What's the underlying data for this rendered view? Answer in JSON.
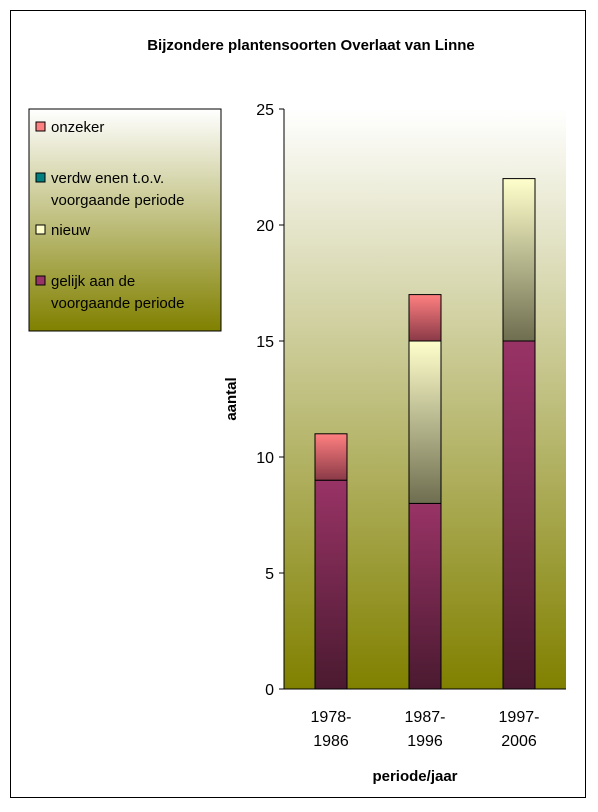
{
  "chart_data": {
    "type": "bar",
    "stacked": true,
    "title": "Bijzondere plantensoorten Overlaat van Linne",
    "xlabel": "periode/jaar",
    "ylabel": "aantal",
    "categories": [
      [
        "1978-",
        "1986"
      ],
      [
        "1987-",
        "1996"
      ],
      [
        "1997-",
        "2006"
      ]
    ],
    "ylim": [
      0,
      25
    ],
    "yticks": [
      "0",
      "5",
      "10",
      "15",
      "20",
      "25"
    ],
    "series": [
      {
        "name": "gelijk aan de voorgaande periode",
        "values": [
          9,
          8,
          15
        ],
        "color": "#993366",
        "color_dark": "#4a1a30"
      },
      {
        "name": "nieuw",
        "values": [
          0,
          7,
          7
        ],
        "color": "#ffffcc",
        "color_dark": "#6e6e50"
      },
      {
        "name": "verdw enen t.o.v. voorgaande periode",
        "values": [
          0,
          0,
          0
        ],
        "color": "#008080",
        "color_dark": "#004040"
      },
      {
        "name": "onzeker",
        "values": [
          2,
          2,
          0
        ],
        "color": "#ff8080",
        "color_dark": "#8a3a48"
      }
    ],
    "legend": {
      "placement": "left",
      "items": [
        {
          "lines": [
            "onzeker"
          ],
          "color": "#ff8080"
        },
        {
          "lines": [
            "verdw enen t.o.v.",
            "voorgaande periode"
          ],
          "color": "#008080"
        },
        {
          "lines": [
            "nieuw"
          ],
          "color": "#ffffcc"
        },
        {
          "lines": [
            "gelijk aan de",
            "voorgaande periode"
          ],
          "color": "#993366"
        }
      ]
    },
    "plot_background": {
      "top": "#ffffff",
      "bottom": "#808000"
    },
    "grid": false
  }
}
